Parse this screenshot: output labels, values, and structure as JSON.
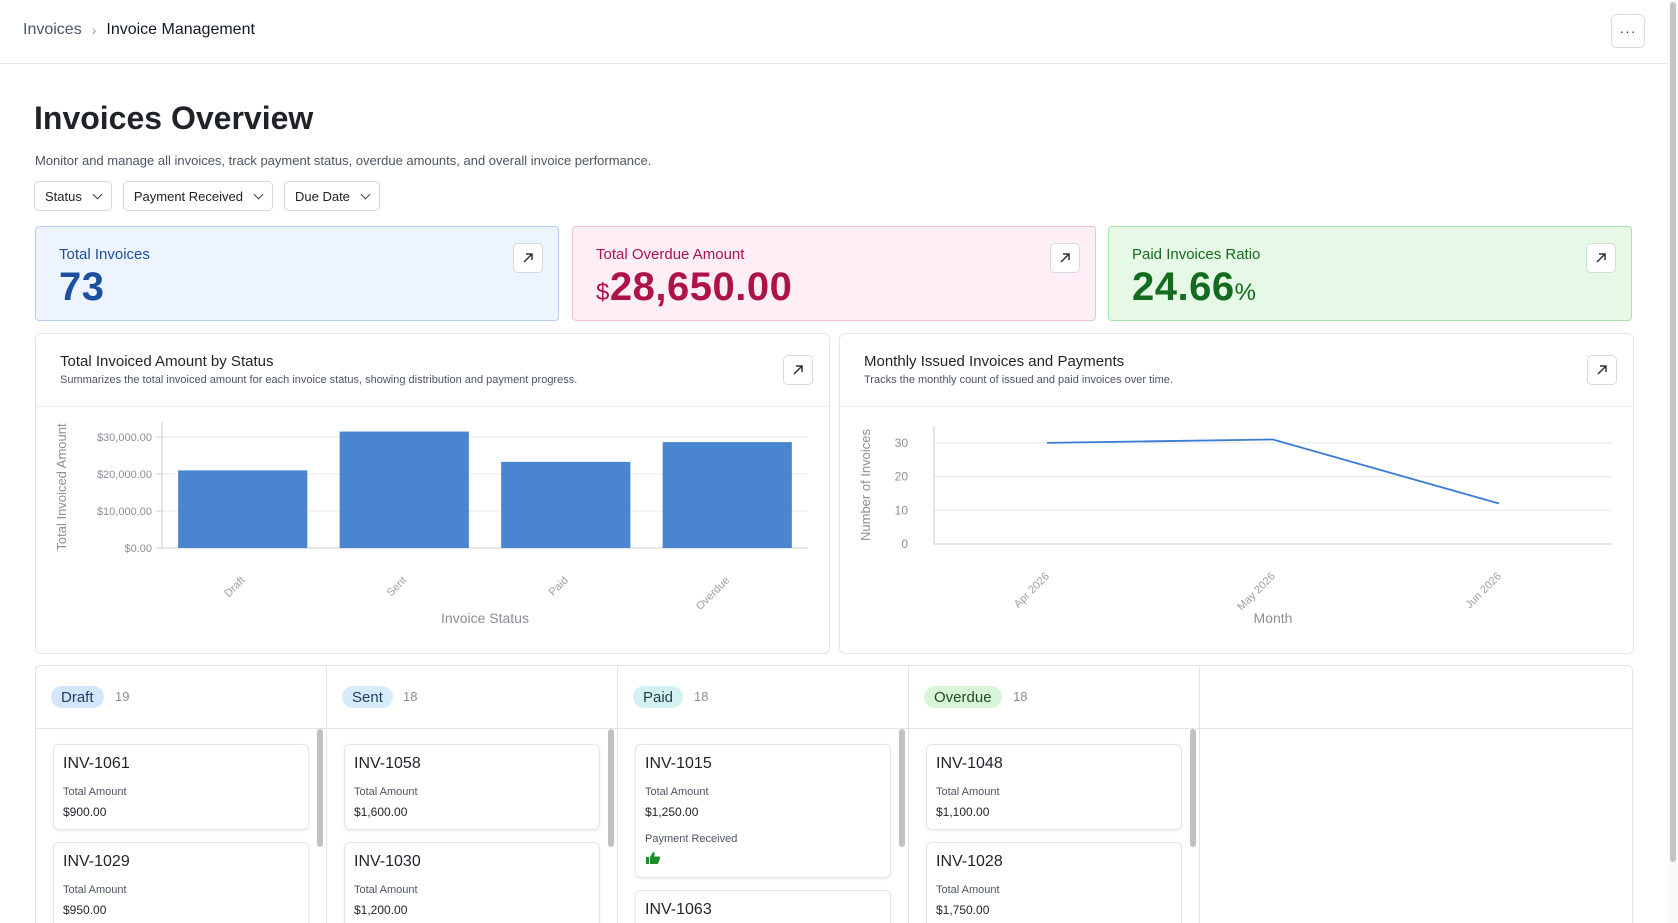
{
  "breadcrumb": {
    "root": "Invoices",
    "current": "Invoice Management"
  },
  "header": {
    "more_label": "···"
  },
  "page": {
    "title": "Invoices Overview",
    "subtitle": "Monitor and manage all invoices, track payment status, overdue amounts, and overall invoice performance."
  },
  "filters": [
    {
      "label": "Status"
    },
    {
      "label": "Payment Received"
    },
    {
      "label": "Due Date"
    }
  ],
  "kpis": [
    {
      "label": "Total Invoices",
      "value": "73",
      "prefix": "",
      "suffix": ""
    },
    {
      "label": "Total Overdue Amount",
      "value": "28,650.00",
      "prefix": "$",
      "suffix": ""
    },
    {
      "label": "Paid Invoices Ratio",
      "value": "24.66",
      "prefix": "",
      "suffix": "%"
    }
  ],
  "charts": {
    "status_chart": {
      "title": "Total Invoiced Amount by Status",
      "subtitle": "Summarizes the total invoiced amount for each invoice status, showing distribution and payment progress."
    },
    "monthly_chart": {
      "title": "Monthly Issued Invoices and Payments",
      "subtitle": "Tracks the monthly count of issued and paid invoices over time."
    }
  },
  "chart_data": [
    {
      "type": "bar",
      "title": "Total Invoiced Amount by Status",
      "xlabel": "Invoice Status",
      "ylabel": "Total Invoiced Amount",
      "categories": [
        "Draft",
        "Sent",
        "Paid",
        "Overdue"
      ],
      "values": [
        21000,
        31500,
        23300,
        28650
      ],
      "ylim": [
        0,
        33000
      ],
      "yticks": [
        0,
        10000,
        20000,
        30000
      ],
      "ytick_labels": [
        "$0.00",
        "$10,000.00",
        "$20,000.00",
        "$30,000.00"
      ],
      "color": "#4a86d0",
      "grid": true
    },
    {
      "type": "line",
      "title": "Monthly Issued Invoices and Payments",
      "xlabel": "Month",
      "ylabel": "Number of Invoices",
      "categories": [
        "Apr 2026",
        "May 2026",
        "Jun 2026"
      ],
      "values": [
        30,
        31,
        12
      ],
      "ylim": [
        0,
        35
      ],
      "yticks": [
        0,
        10,
        20,
        30
      ],
      "ytick_labels": [
        "0",
        "10",
        "20",
        "30"
      ],
      "color": "#3a7bd5",
      "grid": true
    }
  ],
  "kanban": {
    "amount_label": "Total Amount",
    "payment_label": "Payment Received",
    "columns": [
      {
        "name": "Draft",
        "count": "19",
        "cards": [
          {
            "id": "INV-1061",
            "amount": "$900.00"
          },
          {
            "id": "INV-1029",
            "amount": "$950.00"
          }
        ]
      },
      {
        "name": "Sent",
        "count": "18",
        "cards": [
          {
            "id": "INV-1058",
            "amount": "$1,600.00"
          },
          {
            "id": "INV-1030",
            "amount": "$1,200.00"
          }
        ]
      },
      {
        "name": "Paid",
        "count": "18",
        "cards": [
          {
            "id": "INV-1015",
            "amount": "$1,250.00"
          },
          {
            "id": "INV-1063",
            "amount": ""
          }
        ]
      },
      {
        "name": "Overdue",
        "count": "18",
        "cards": [
          {
            "id": "INV-1048",
            "amount": "$1,100.00"
          },
          {
            "id": "INV-1028",
            "amount": "$1,750.00"
          }
        ]
      }
    ]
  },
  "colors": {
    "draft_tag": "#d3e6fb",
    "sent_tag": "#d6ecf9",
    "paid_tag": "#d4f1f2",
    "overdue_tag": "#d8f5da",
    "thumbs_up": "#1f8b2c"
  }
}
